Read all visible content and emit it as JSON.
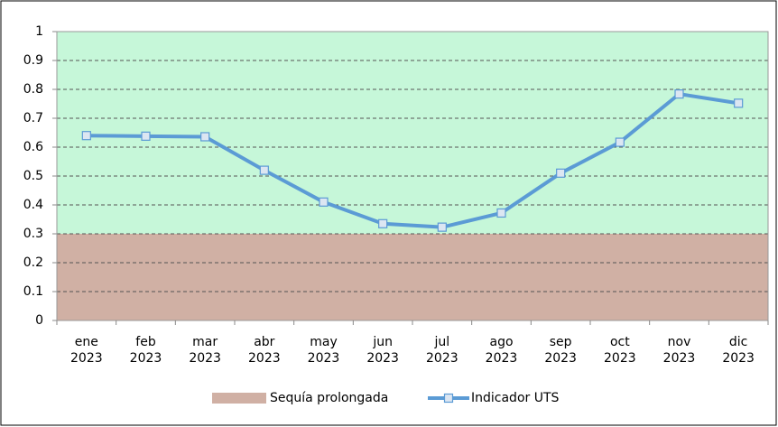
{
  "chart_data": {
    "type": "line",
    "categories": [
      "ene\n2023",
      "feb\n2023",
      "mar\n2023",
      "abr\n2023",
      "may\n2023",
      "jun\n2023",
      "jul\n2023",
      "ago\n2023",
      "sep\n2023",
      "oct\n2023",
      "nov\n2023",
      "dic\n2023"
    ],
    "series": [
      {
        "name": "Sequía prolongada",
        "type": "area",
        "color": "#d0b0a4",
        "values": [
          0.3,
          0.3,
          0.3,
          0.3,
          0.3,
          0.3,
          0.3,
          0.3,
          0.3,
          0.3,
          0.3,
          0.3
        ]
      },
      {
        "name": "Indicador UTS",
        "type": "line",
        "color": "#5b9bd5",
        "marker_fill": "#dce6f2",
        "values": [
          0.64,
          0.638,
          0.636,
          0.52,
          0.41,
          0.335,
          0.323,
          0.372,
          0.51,
          0.617,
          0.784,
          0.752
        ]
      }
    ],
    "plot_background": "#c6f7d9",
    "ylim": [
      0,
      1
    ],
    "yticks": [
      0,
      0.1,
      0.2,
      0.3,
      0.4,
      0.5,
      0.6,
      0.7,
      0.8,
      0.9,
      1
    ],
    "grid": true,
    "legend": "bottom"
  }
}
